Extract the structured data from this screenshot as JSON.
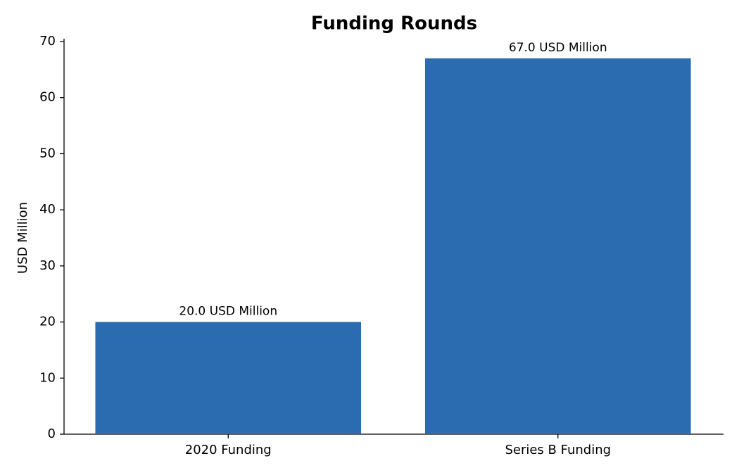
{
  "chart_data": {
    "type": "bar",
    "title": "Funding Rounds",
    "y_label": "USD Million",
    "categories": [
      "2020 Funding",
      "Series B Funding"
    ],
    "values": [
      20.0,
      67.0
    ],
    "value_labels": [
      "20.0 USD Million",
      "67.0 USD Million"
    ],
    "color": "#2b6cb0",
    "ylim": [
      0,
      70
    ],
    "yticks": [
      0,
      10,
      20,
      30,
      40,
      50,
      60,
      70
    ],
    "grid": false
  }
}
